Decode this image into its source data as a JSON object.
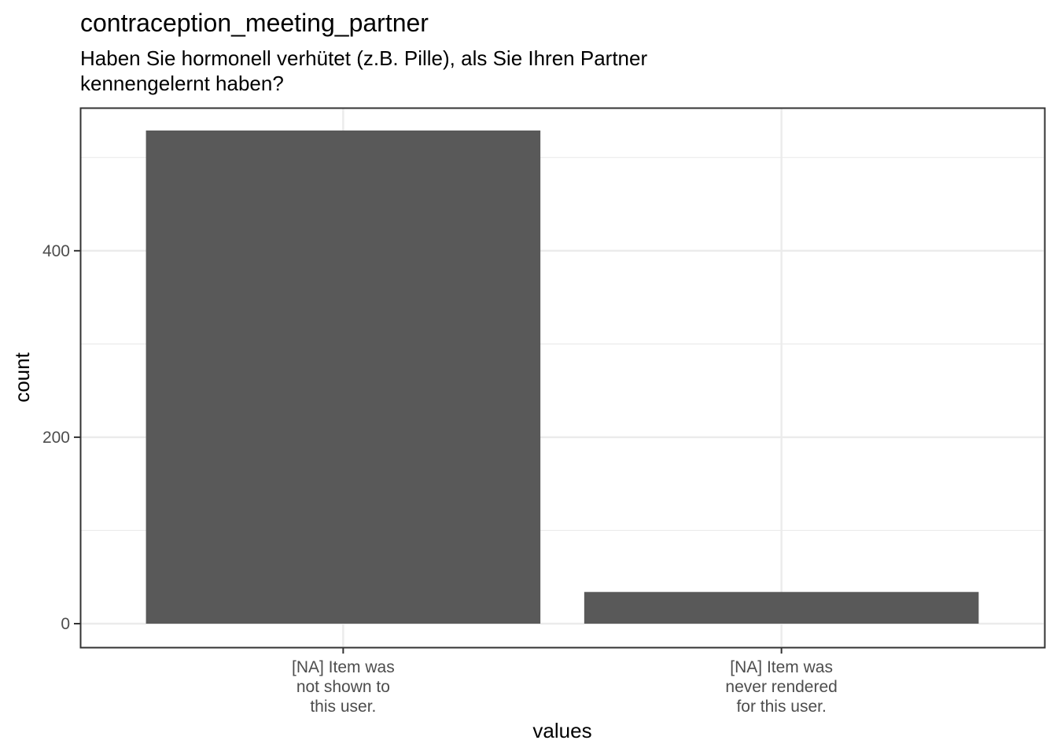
{
  "chart_data": {
    "type": "bar",
    "title": "contraception_meeting_partner",
    "subtitle": [
      "Haben Sie hormonell verhütet (z.B. Pille), als Sie Ihren Partner",
      "kennengelernt haben?"
    ],
    "xlabel": "values",
    "ylabel": "count",
    "categories": [
      [
        "[NA] Item was",
        "not shown to",
        "this user."
      ],
      [
        "[NA] Item was",
        "never rendered",
        "for this user."
      ]
    ],
    "values": [
      529,
      34
    ],
    "ylim": [
      0,
      560
    ],
    "yticks": [
      0,
      200,
      400
    ],
    "grid": true,
    "legend": "none",
    "bar_color": "#595959",
    "panel_border_color": "#333333",
    "grid_color": "#ebebeb"
  }
}
